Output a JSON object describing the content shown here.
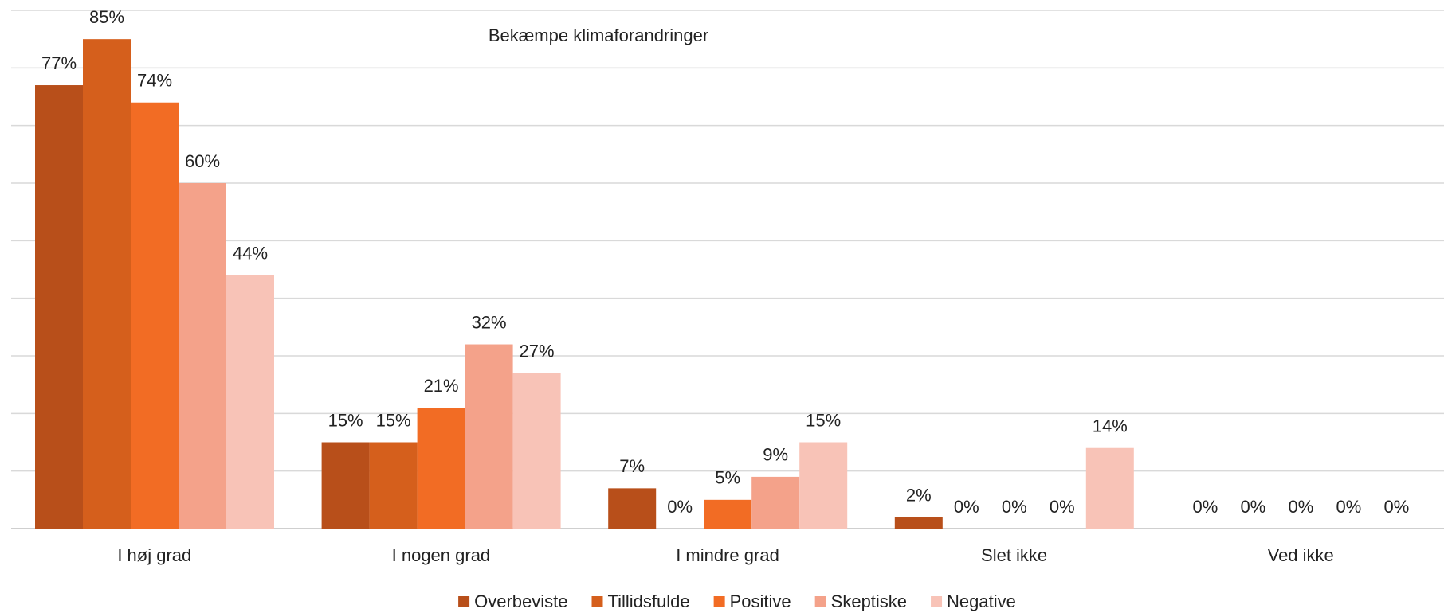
{
  "chart_data": {
    "type": "bar",
    "title": "Bekæmpe klimaforandringer",
    "categories": [
      "I høj grad",
      "I nogen grad",
      "I mindre grad",
      "Slet ikke",
      "Ved ikke"
    ],
    "series": [
      {
        "name": "Overbeviste",
        "color": "#b84f1a",
        "values": [
          77,
          15,
          7,
          2,
          0
        ],
        "value_labels": [
          "77%",
          "15%",
          "7%",
          "2%",
          "0%"
        ]
      },
      {
        "name": "Tillidsfulde",
        "color": "#d55f1c",
        "values": [
          85,
          15,
          0,
          0,
          0
        ],
        "value_labels": [
          "85%",
          "15%",
          "0%",
          "0%",
          "0%"
        ]
      },
      {
        "name": "Positive",
        "color": "#f26c24",
        "values": [
          74,
          21,
          5,
          0,
          0
        ],
        "value_labels": [
          "74%",
          "21%",
          "5%",
          "0%",
          "0%"
        ]
      },
      {
        "name": "Skeptiske",
        "color": "#f4a28a",
        "values": [
          60,
          32,
          9,
          0,
          0
        ],
        "value_labels": [
          "60%",
          "32%",
          "9%",
          "0%",
          "0%"
        ]
      },
      {
        "name": "Negative",
        "color": "#f8c3b7",
        "values": [
          44,
          27,
          15,
          14,
          0
        ],
        "value_labels": [
          "44%",
          "27%",
          "15%",
          "14%",
          "0%"
        ]
      }
    ],
    "ylim": [
      0,
      90
    ],
    "yticks": [
      0,
      10,
      20,
      30,
      40,
      50,
      60,
      70,
      80,
      90
    ],
    "grid": true,
    "legend": "bottom"
  }
}
